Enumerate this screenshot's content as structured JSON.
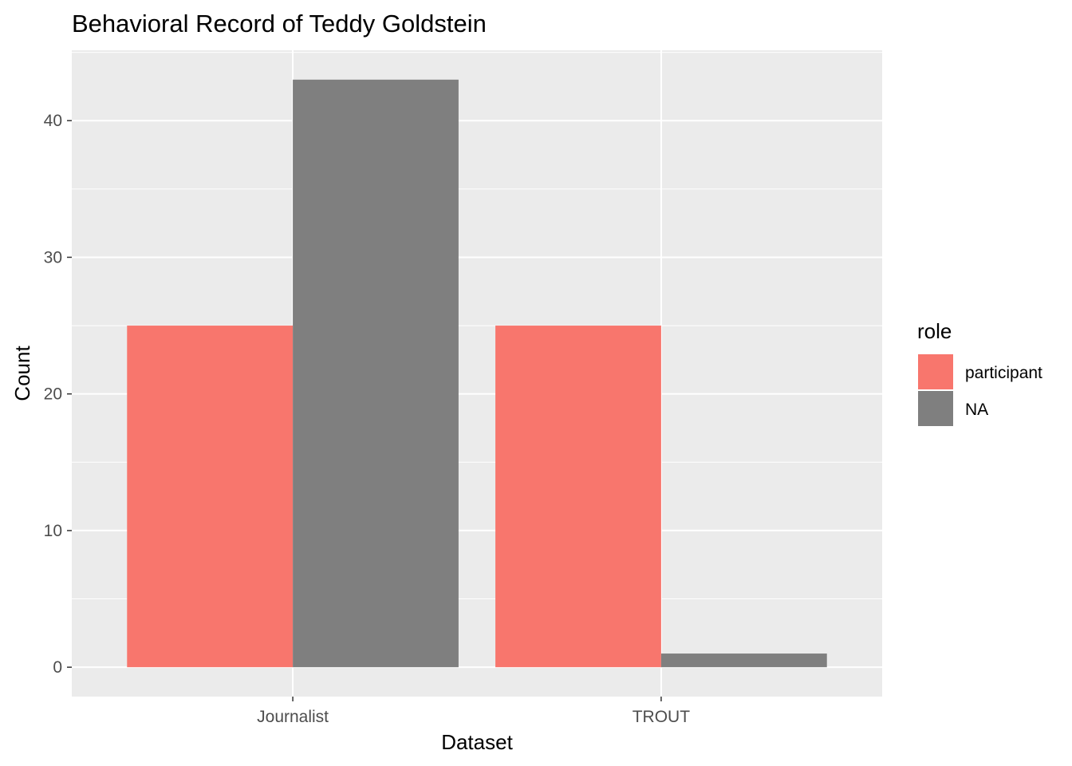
{
  "chart_data": {
    "type": "bar",
    "title": "Behavioral Record of Teddy Goldstein",
    "xlabel": "Dataset",
    "ylabel": "Count",
    "categories": [
      "Journalist",
      "TROUT"
    ],
    "series": [
      {
        "name": "participant",
        "color": "#F8766D",
        "values": [
          25,
          25
        ]
      },
      {
        "name": "NA",
        "color": "#7F7F7F",
        "values": [
          43,
          1
        ]
      }
    ],
    "ylim": [
      -2.15,
      45.15
    ],
    "yticks": [
      0,
      10,
      20,
      30,
      40
    ],
    "legend": {
      "title": "role",
      "position": "right"
    },
    "grid": true,
    "panel_background": "#EBEBEB"
  }
}
